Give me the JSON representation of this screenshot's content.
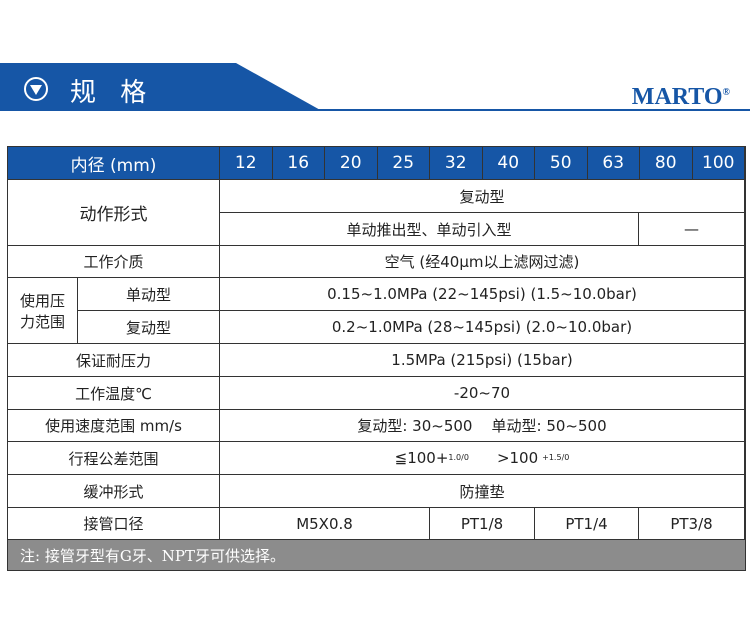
{
  "header": {
    "title": "规 格",
    "icon": "down-triangle-circle-icon",
    "brand": "MARTO",
    "brand_mark": "®"
  },
  "colors": {
    "accent": "#1656a6",
    "note_bg": "#8c8c8c"
  },
  "table": {
    "bore_label": "内径 (mm)",
    "bores": [
      "12",
      "16",
      "20",
      "25",
      "32",
      "40",
      "50",
      "63",
      "80",
      "100"
    ],
    "action_label": "动作形式",
    "action_value": "复动型",
    "action_sub": "单动推出型、单动引入型",
    "action_sub_na": "—",
    "medium_label": "工作介质",
    "medium_value": "空气 (经40μm以上滤网过滤)",
    "pressure_label": "使用压力范围",
    "single_label": "单动型",
    "single_value": "0.15~1.0MPa (22~145psi) (1.5~10.0bar)",
    "double_label": "复动型",
    "double_value": "0.2~1.0MPa (28~145psi) (2.0~10.0bar)",
    "proof_label": "保证耐压力",
    "proof_value": "1.5MPa (215psi) (15bar)",
    "temp_label": "工作温度℃",
    "temp_value": "-20~70",
    "speed_label": "使用速度范围 mm/s",
    "speed_value": "复动型: 30~500    单动型: 50~500",
    "stroke_label": "行程公差范围",
    "stroke_a": "≦100+",
    "stroke_a_tol": "1.0/0",
    "stroke_b": ">100",
    "stroke_b_tol": "+1.5/0",
    "cushion_label": "缓冲形式",
    "cushion_value": "防撞垫",
    "port_label": "接管口径",
    "ports": [
      "M5X0.8",
      "PT1/8",
      "PT1/4",
      "PT3/8"
    ],
    "note": "注: 接管牙型有G牙、NPT牙可供选择。"
  }
}
